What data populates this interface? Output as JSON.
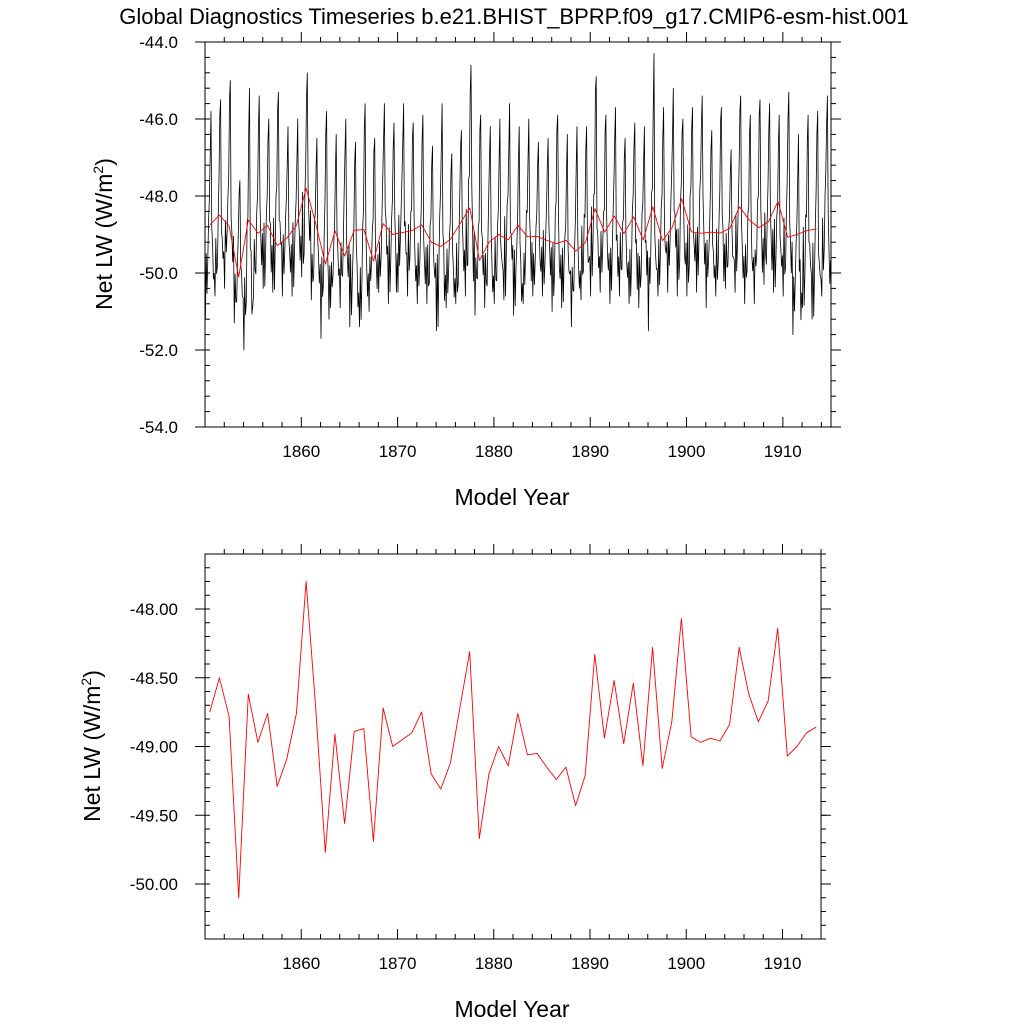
{
  "title": "Global Diagnostics Timeseries b.e21.BHIST_BPRP.f09_g17.CMIP6-esm-hist.001",
  "colors": {
    "monthly": "#000000",
    "annual": "#ff0000",
    "frame": "#000000"
  },
  "chart_data": [
    {
      "type": "line",
      "panel": "top",
      "xlabel": "Model Year",
      "ylabel_main": "Net LW (W/m",
      "ylabel_sup": "2",
      "ylabel_close": ")",
      "xlim": [
        1850,
        1915
      ],
      "ylim": [
        -54.0,
        -44.0
      ],
      "xticks": [
        1860,
        1870,
        1880,
        1890,
        1900,
        1910
      ],
      "xtick_labels": [
        "1860",
        "1870",
        "1880",
        "1890",
        "1900",
        "1910"
      ],
      "yticks": [
        -54.0,
        -52.0,
        -50.0,
        -48.0,
        -46.0,
        -44.0
      ],
      "ytick_labels": [
        "-54.0",
        "-52.0",
        "-50.0",
        "-48.0",
        "-46.0",
        "-44.0"
      ],
      "series": [
        {
          "name": "monthly",
          "color": "#000000",
          "x_start": 1850.04,
          "x_step": 0.0833333,
          "annual_peaks": [
            -45.8,
            -45.5,
            -45.0,
            -47.6,
            -45.2,
            -45.4,
            -46.0,
            -45.3,
            -46.2,
            -46.0,
            -44.8,
            -46.5,
            -45.8,
            -46.4,
            -46.0,
            -46.6,
            -45.6,
            -46.5,
            -45.6,
            -46.1,
            -45.6,
            -46.1,
            -45.9,
            -46.7,
            -45.6,
            -46.9,
            -46.3,
            -44.6,
            -45.9,
            -46.2,
            -46.0,
            -45.6,
            -46.2,
            -46.0,
            -46.6,
            -46.5,
            -45.9,
            -46.4,
            -46.2,
            -46.2,
            -44.9,
            -45.9,
            -45.7,
            -46.5,
            -46.1,
            -46.2,
            -44.3,
            -45.7,
            -45.2,
            -46.0,
            -45.7,
            -45.4,
            -46.3,
            -45.7,
            -46.8,
            -45.4,
            -45.9,
            -45.5,
            -45.6,
            -45.9,
            -45.3,
            -46.4,
            -45.9,
            -45.8,
            -45.4
          ],
          "annual_troughs": [
            -51.2,
            -50.6,
            -50.4,
            -51.3,
            -52.0,
            -50.6,
            -50.4,
            -50.5,
            -50.6,
            -50.6,
            -50.1,
            -50.7,
            -51.7,
            -50.9,
            -50.9,
            -51.4,
            -51.4,
            -51.0,
            -50.5,
            -50.8,
            -50.5,
            -50.6,
            -50.8,
            -50.8,
            -51.5,
            -50.9,
            -50.8,
            -50.6,
            -51.1,
            -50.9,
            -50.8,
            -50.7,
            -51.1,
            -50.8,
            -50.6,
            -50.6,
            -51.0,
            -50.9,
            -51.4,
            -50.7,
            -50.6,
            -50.5,
            -50.8,
            -50.6,
            -50.8,
            -50.9,
            -51.5,
            -50.6,
            -50.5,
            -50.6,
            -50.6,
            -50.5,
            -50.9,
            -50.6,
            -50.4,
            -50.5,
            -50.8,
            -50.8,
            -50.3,
            -50.5,
            -50.6,
            -51.6,
            -50.9,
            -51.2,
            -50.6
          ]
        },
        {
          "name": "annual mean",
          "color": "#ff0000",
          "x": [
            1850.5,
            1851.5,
            1852.5,
            1853.5,
            1854.5,
            1855.5,
            1856.5,
            1857.5,
            1858.5,
            1859.5,
            1860.5,
            1861.5,
            1862.5,
            1863.5,
            1864.5,
            1865.5,
            1866.5,
            1867.5,
            1868.5,
            1869.5,
            1870.5,
            1871.5,
            1872.5,
            1873.5,
            1874.5,
            1875.5,
            1876.5,
            1877.5,
            1878.5,
            1879.5,
            1880.5,
            1881.5,
            1882.5,
            1883.5,
            1884.5,
            1885.5,
            1886.5,
            1887.5,
            1888.5,
            1889.5,
            1890.5,
            1891.5,
            1892.5,
            1893.5,
            1894.5,
            1895.5,
            1896.5,
            1897.5,
            1898.5,
            1899.5,
            1900.5,
            1901.5,
            1902.5,
            1903.5,
            1904.5,
            1905.5,
            1906.5,
            1907.5,
            1908.5,
            1909.5,
            1910.5,
            1911.5,
            1912.5,
            1913.5
          ],
          "values": [
            -48.75,
            -48.5,
            -48.78,
            -50.1,
            -48.62,
            -48.97,
            -48.76,
            -49.29,
            -49.09,
            -48.76,
            -47.8,
            -48.72,
            -49.77,
            -48.91,
            -49.56,
            -48.89,
            -48.87,
            -49.69,
            -48.72,
            -49.0,
            -48.95,
            -48.9,
            -48.75,
            -49.2,
            -49.31,
            -49.12,
            -48.71,
            -48.31,
            -49.67,
            -49.2,
            -49.0,
            -49.14,
            -48.76,
            -49.06,
            -49.05,
            -49.15,
            -49.24,
            -49.15,
            -49.43,
            -49.21,
            -48.33,
            -48.94,
            -48.52,
            -48.98,
            -48.54,
            -49.14,
            -48.28,
            -49.16,
            -48.82,
            -48.07,
            -48.93,
            -48.97,
            -48.94,
            -48.96,
            -48.84,
            -48.28,
            -48.62,
            -48.82,
            -48.67,
            -48.14,
            -49.07,
            -49.0,
            -48.9,
            -48.86
          ]
        }
      ]
    },
    {
      "type": "line",
      "panel": "bottom",
      "xlabel": "Model Year",
      "ylabel_main": "Net LW (W/m",
      "ylabel_sup": "2",
      "ylabel_close": ")",
      "xlim": [
        1850,
        1914
      ],
      "ylim": [
        -50.4,
        -47.6
      ],
      "xticks": [
        1860,
        1870,
        1880,
        1890,
        1900,
        1910
      ],
      "xtick_labels": [
        "1860",
        "1870",
        "1880",
        "1890",
        "1900",
        "1910"
      ],
      "yticks": [
        -50.0,
        -49.5,
        -49.0,
        -48.5,
        -48.0
      ],
      "ytick_labels": [
        "-50.00",
        "-49.50",
        "-49.00",
        "-48.50",
        "-48.00"
      ],
      "series": [
        {
          "name": "annual mean",
          "color": "#ff0000",
          "x": [
            1850.5,
            1851.5,
            1852.5,
            1853.5,
            1854.5,
            1855.5,
            1856.5,
            1857.5,
            1858.5,
            1859.5,
            1860.5,
            1861.5,
            1862.5,
            1863.5,
            1864.5,
            1865.5,
            1866.5,
            1867.5,
            1868.5,
            1869.5,
            1870.5,
            1871.5,
            1872.5,
            1873.5,
            1874.5,
            1875.5,
            1876.5,
            1877.5,
            1878.5,
            1879.5,
            1880.5,
            1881.5,
            1882.5,
            1883.5,
            1884.5,
            1885.5,
            1886.5,
            1887.5,
            1888.5,
            1889.5,
            1890.5,
            1891.5,
            1892.5,
            1893.5,
            1894.5,
            1895.5,
            1896.5,
            1897.5,
            1898.5,
            1899.5,
            1900.5,
            1901.5,
            1902.5,
            1903.5,
            1904.5,
            1905.5,
            1906.5,
            1907.5,
            1908.5,
            1909.5,
            1910.5,
            1911.5,
            1912.5,
            1913.5
          ],
          "values": [
            -48.75,
            -48.5,
            -48.78,
            -50.1,
            -48.62,
            -48.97,
            -48.76,
            -49.29,
            -49.09,
            -48.76,
            -47.8,
            -48.72,
            -49.77,
            -48.91,
            -49.56,
            -48.89,
            -48.87,
            -49.69,
            -48.72,
            -49.0,
            -48.95,
            -48.9,
            -48.75,
            -49.2,
            -49.31,
            -49.12,
            -48.71,
            -48.31,
            -49.67,
            -49.2,
            -49.0,
            -49.14,
            -48.76,
            -49.06,
            -49.05,
            -49.15,
            -49.24,
            -49.15,
            -49.43,
            -49.21,
            -48.33,
            -48.94,
            -48.52,
            -48.98,
            -48.54,
            -49.14,
            -48.28,
            -49.16,
            -48.82,
            -48.07,
            -48.93,
            -48.97,
            -48.94,
            -48.96,
            -48.84,
            -48.28,
            -48.62,
            -48.82,
            -48.67,
            -48.14,
            -49.07,
            -49.0,
            -48.9,
            -48.86
          ]
        }
      ]
    }
  ]
}
